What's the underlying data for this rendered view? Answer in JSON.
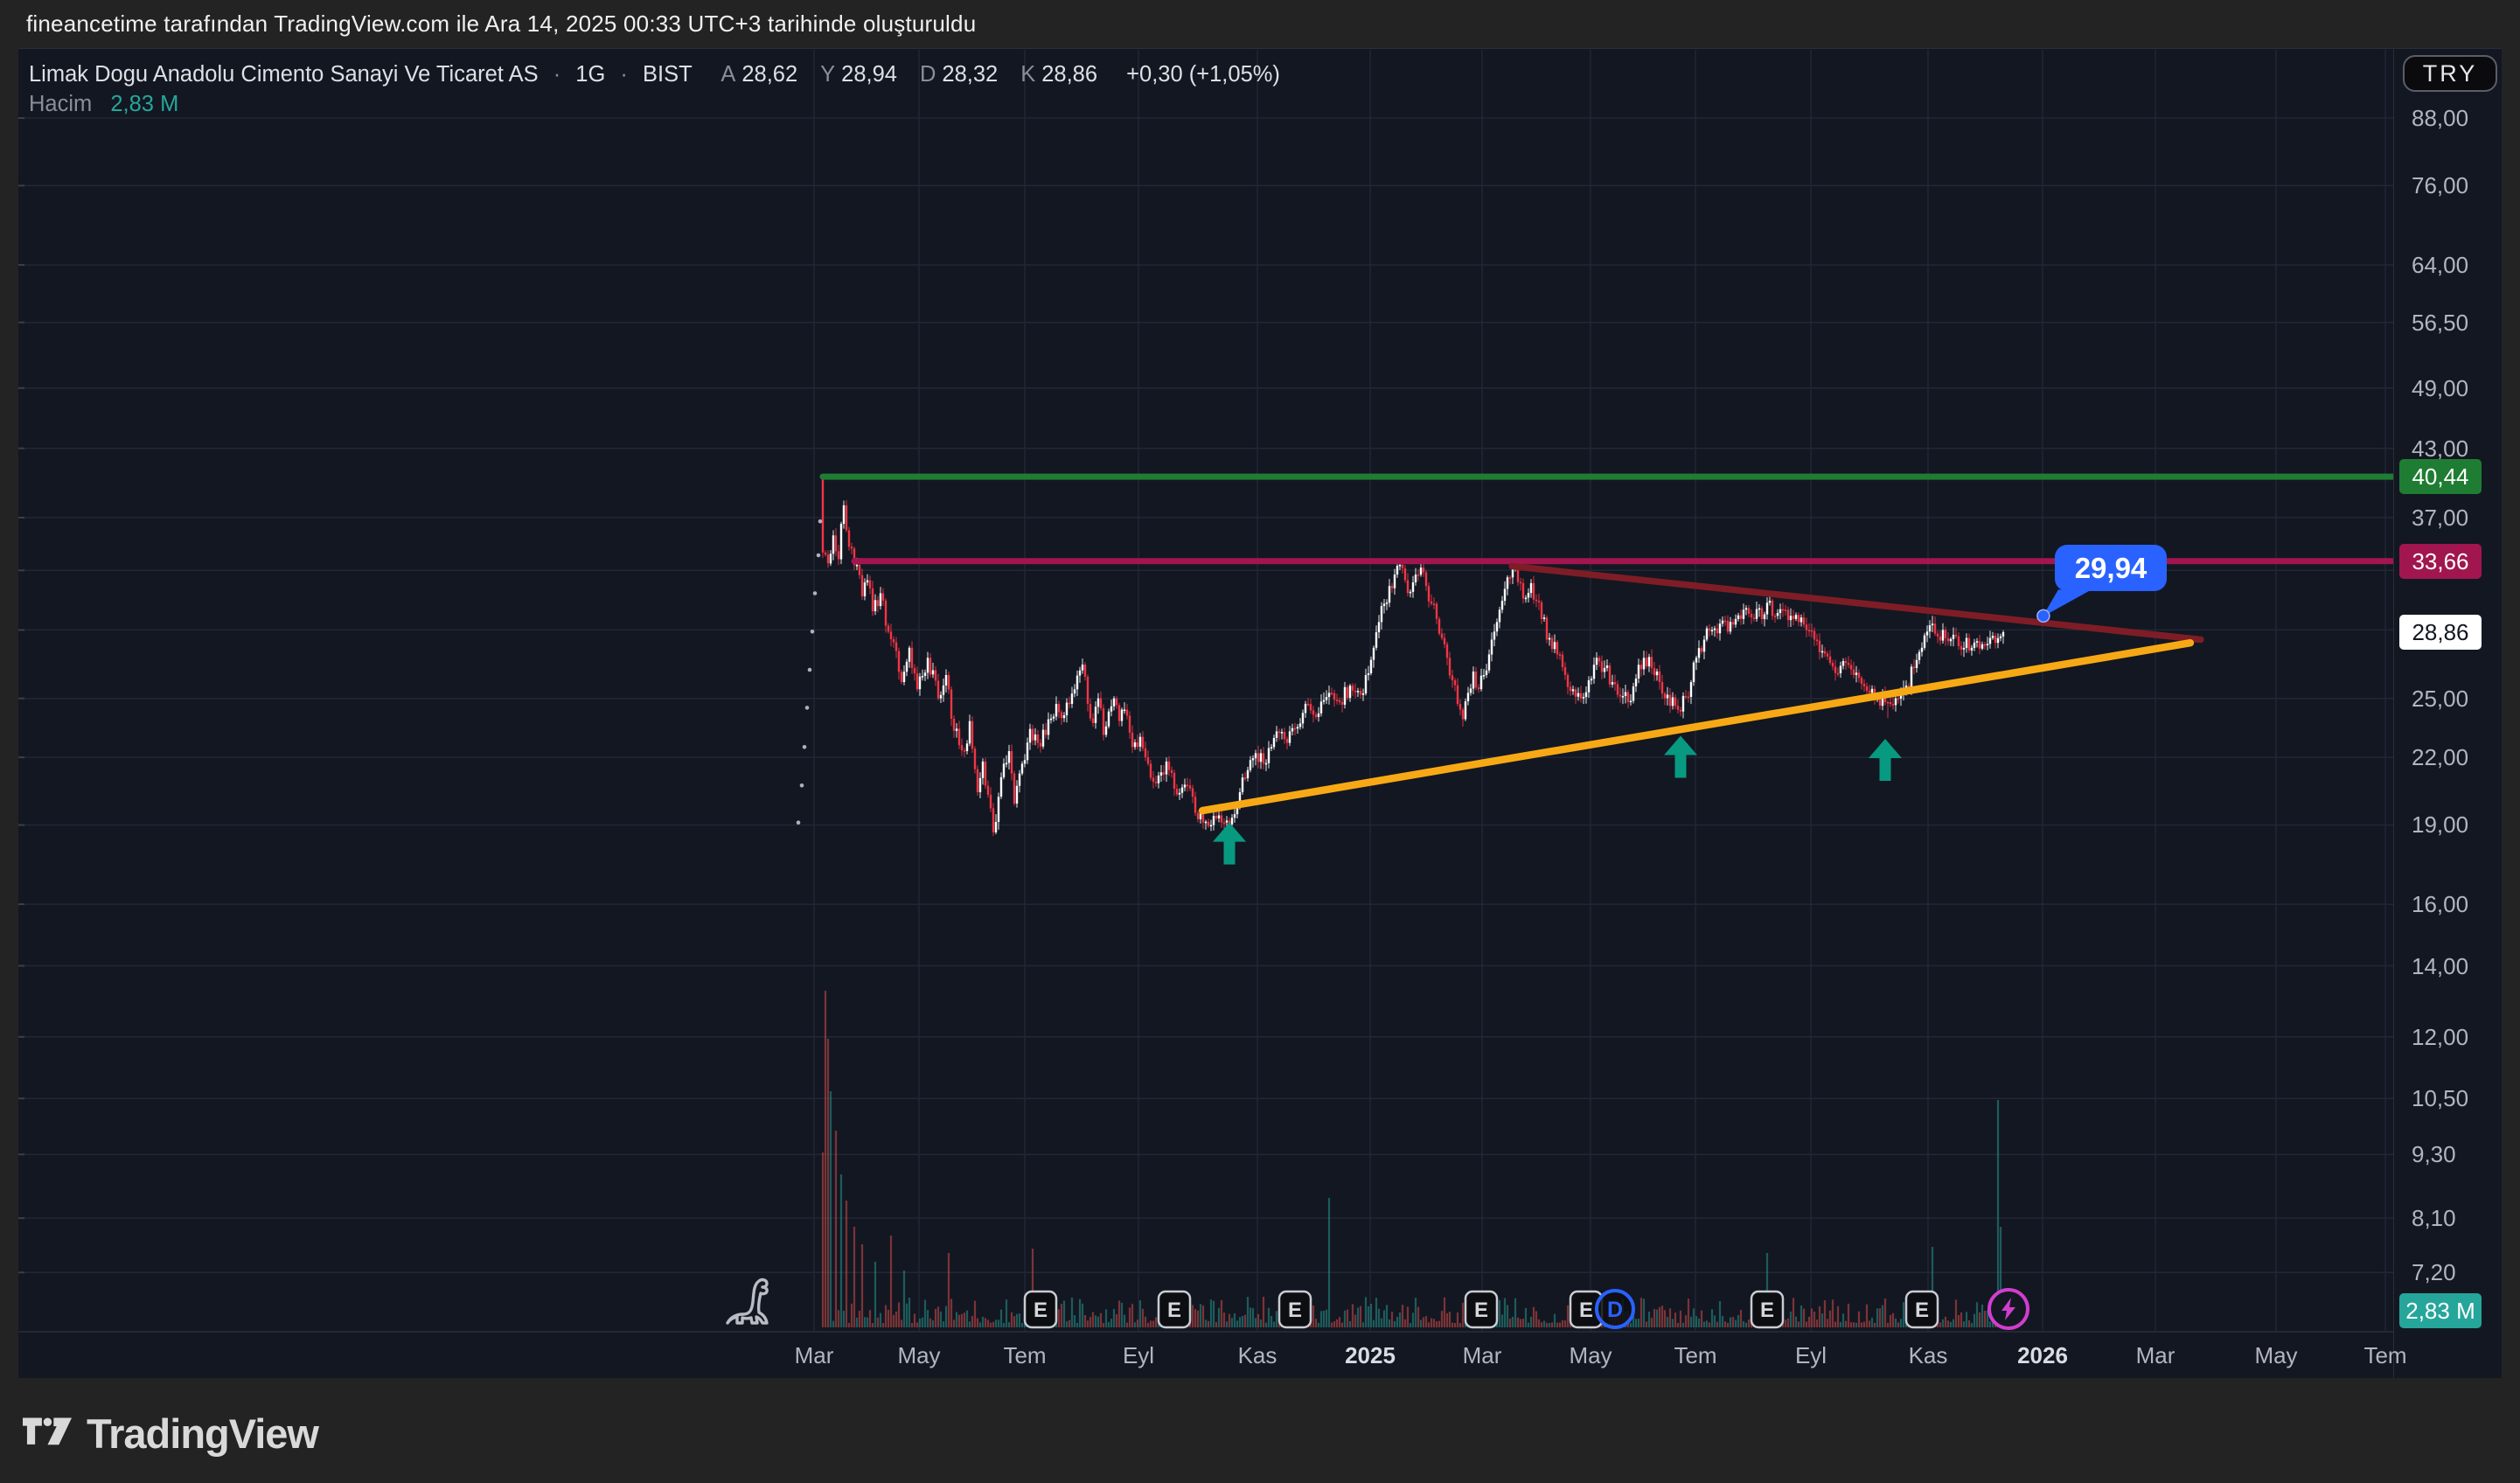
{
  "attribution": "fineancetime tarafından TradingView.com ile Ara 14, 2025 00:33 UTC+3 tarihinde oluşturuldu",
  "symbol": {
    "title": "Limak Dogu Anadolu Cimento Sanayi Ve Ticaret AS",
    "separator": "·",
    "interval": "1G",
    "exchange": "BIST",
    "ohlc": [
      {
        "label": "A",
        "value": "28,62"
      },
      {
        "label": "Y",
        "value": "28,94"
      },
      {
        "label": "D",
        "value": "28,32"
      },
      {
        "label": "K",
        "value": "28,86"
      }
    ],
    "change": "+0,30 (+1,05%)",
    "volume_label": "Hacim",
    "volume_value": "2,83 M"
  },
  "price_axis": {
    "currency": "TRY",
    "ticks": [
      {
        "label": "88,00",
        "price": 88
      },
      {
        "label": "76,00",
        "price": 76
      },
      {
        "label": "64,00",
        "price": 64
      },
      {
        "label": "56,50",
        "price": 56.5
      },
      {
        "label": "49,00",
        "price": 49
      },
      {
        "label": "43,00",
        "price": 43
      },
      {
        "label": "37,00",
        "price": 37
      },
      {
        "label": "25,00",
        "price": 25
      },
      {
        "label": "22,00",
        "price": 22
      },
      {
        "label": "19,00",
        "price": 19
      },
      {
        "label": "16,00",
        "price": 16
      },
      {
        "label": "14,00",
        "price": 14
      },
      {
        "label": "12,00",
        "price": 12
      },
      {
        "label": "10,50",
        "price": 10.5
      },
      {
        "label": "9,30",
        "price": 9.3
      },
      {
        "label": "8,10",
        "price": 8.1
      },
      {
        "label": "7,20",
        "price": 7.2
      }
    ],
    "grid_extra_prices": [
      33,
      29
    ],
    "badges": [
      {
        "label": "40,44",
        "price": 40.44,
        "bg": "#1e7d32",
        "fg": "#ffffff"
      },
      {
        "label": "33,66",
        "price": 33.66,
        "bg": "#a1164f",
        "fg": "#ffffff"
      },
      {
        "label": "28,86",
        "price": 28.86,
        "bg": "#ffffff",
        "fg": "#131722"
      }
    ],
    "volume_badge": {
      "label": "2,83 M",
      "bg": "#26a69a",
      "fg": "#ffffff"
    }
  },
  "time_axis": {
    "labels": [
      {
        "text": "Mar"
      },
      {
        "text": "May"
      },
      {
        "text": "Tem"
      },
      {
        "text": "Eyl"
      },
      {
        "text": "Kas"
      },
      {
        "text": "2025",
        "bold": true
      },
      {
        "text": "Mar"
      },
      {
        "text": "May"
      },
      {
        "text": "Tem"
      },
      {
        "text": "Eyl"
      },
      {
        "text": "Kas"
      },
      {
        "text": "2026",
        "bold": true
      },
      {
        "text": "Mar"
      },
      {
        "text": "May"
      },
      {
        "text": "Tem"
      }
    ]
  },
  "logo": {
    "text": "TradingView"
  },
  "colors": {
    "background": "#131722",
    "frame": "#232323",
    "grid": "#212736",
    "border": "#2a2e39",
    "candle_up": "#ffffff",
    "candle_down": "#f23645",
    "volume_up": "#2aa79b",
    "volume_down": "#ef5350",
    "line_green": "#1e7d32",
    "line_magenta": "#a1164f",
    "line_red": "#7e1d26",
    "line_yellow": "#f7a915",
    "arrow": "#089981",
    "tooltip": "#2962ff",
    "event_border": "#c9ccd3",
    "event_text": "#d4d7dd",
    "dividend": "#2962ff",
    "flash": "#cf3ecf",
    "dino": "#b9bcc4",
    "dots": "#aeb1bb"
  },
  "chart_data": {
    "type": "candlestick",
    "interval": "1G",
    "currency": "TRY",
    "y_scale": "log",
    "y_ticks": [
      88,
      76,
      64,
      56.5,
      49,
      43,
      37,
      25,
      22,
      19,
      16,
      14,
      12,
      10.5,
      9.3,
      8.1,
      7.2
    ],
    "x_range": {
      "start": "Mar 2024",
      "end": "Tem 2026",
      "last_candle": "Ara 2025"
    },
    "last_close": 28.86,
    "candles": {
      "count": 451,
      "first_open": 40.2,
      "anchors": [
        [
          0,
          34.3
        ],
        [
          2,
          33.5
        ],
        [
          4,
          35.6
        ],
        [
          6,
          33.8
        ],
        [
          7,
          36.5
        ],
        [
          8,
          38.0
        ],
        [
          9,
          36.0
        ],
        [
          11,
          34.6
        ],
        [
          13,
          33.4
        ],
        [
          15,
          31.2
        ],
        [
          17,
          32.3
        ],
        [
          19,
          30.2
        ],
        [
          22,
          31.4
        ],
        [
          25,
          28.9
        ],
        [
          28,
          27.7
        ],
        [
          30,
          25.9
        ],
        [
          33,
          27.9
        ],
        [
          36,
          25.5
        ],
        [
          40,
          27.3
        ],
        [
          44,
          25.0
        ],
        [
          47,
          26.3
        ],
        [
          50,
          23.3
        ],
        [
          54,
          22.3
        ],
        [
          56,
          23.8
        ],
        [
          59,
          20.4
        ],
        [
          61,
          21.8
        ],
        [
          65,
          18.7
        ],
        [
          67,
          20.2
        ],
        [
          69,
          21.7
        ],
        [
          71,
          22.3
        ],
        [
          73,
          19.9
        ],
        [
          76,
          21.7
        ],
        [
          79,
          23.4
        ],
        [
          82,
          22.7
        ],
        [
          85,
          23.1
        ],
        [
          89,
          24.7
        ],
        [
          92,
          24.1
        ],
        [
          96,
          25.5
        ],
        [
          99,
          26.9
        ],
        [
          101,
          24.7
        ],
        [
          103,
          23.7
        ],
        [
          105,
          25.0
        ],
        [
          107,
          23.1
        ],
        [
          109,
          24.3
        ],
        [
          111,
          25.0
        ],
        [
          113,
          23.8
        ],
        [
          115,
          24.4
        ],
        [
          118,
          22.5
        ],
        [
          121,
          23.0
        ],
        [
          124,
          21.7
        ],
        [
          127,
          20.8
        ],
        [
          131,
          21.8
        ],
        [
          135,
          20.3
        ],
        [
          139,
          20.7
        ],
        [
          142,
          19.5
        ],
        [
          145,
          19.1
        ],
        [
          148,
          19.0
        ],
        [
          151,
          19.4
        ],
        [
          153,
          19.1
        ],
        [
          156,
          19.3
        ],
        [
          159,
          20.4
        ],
        [
          162,
          21.4
        ],
        [
          165,
          22.2
        ],
        [
          168,
          21.7
        ],
        [
          171,
          22.5
        ],
        [
          174,
          23.2
        ],
        [
          177,
          22.7
        ],
        [
          181,
          23.5
        ],
        [
          185,
          24.7
        ],
        [
          189,
          24.2
        ],
        [
          193,
          25.3
        ],
        [
          197,
          24.8
        ],
        [
          201,
          25.7
        ],
        [
          205,
          25.2
        ],
        [
          208,
          26.4
        ],
        [
          210,
          27.9
        ],
        [
          212,
          29.5
        ],
        [
          214,
          30.7
        ],
        [
          216,
          31.9
        ],
        [
          218,
          32.7
        ],
        [
          220,
          33.4
        ],
        [
          222,
          32.3
        ],
        [
          224,
          31.5
        ],
        [
          226,
          32.7
        ],
        [
          228,
          33.2
        ],
        [
          230,
          31.9
        ],
        [
          232,
          30.7
        ],
        [
          234,
          29.7
        ],
        [
          236,
          28.5
        ],
        [
          238,
          27.3
        ],
        [
          240,
          26.0
        ],
        [
          242,
          24.7
        ],
        [
          244,
          23.9
        ],
        [
          246,
          25.3
        ],
        [
          248,
          26.5
        ],
        [
          250,
          25.5
        ],
        [
          252,
          26.3
        ],
        [
          254,
          27.5
        ],
        [
          256,
          28.9
        ],
        [
          258,
          30.3
        ],
        [
          260,
          31.7
        ],
        [
          262,
          32.5
        ],
        [
          264,
          33.2
        ],
        [
          266,
          32.1
        ],
        [
          268,
          31.1
        ],
        [
          270,
          32.1
        ],
        [
          272,
          30.9
        ],
        [
          274,
          29.7
        ],
        [
          277,
          28.5
        ],
        [
          280,
          27.5
        ],
        [
          283,
          26.3
        ],
        [
          286,
          25.5
        ],
        [
          289,
          25.0
        ],
        [
          292,
          26.0
        ],
        [
          295,
          27.3
        ],
        [
          298,
          26.7
        ],
        [
          301,
          25.9
        ],
        [
          304,
          25.1
        ],
        [
          307,
          24.8
        ],
        [
          310,
          26.1
        ],
        [
          313,
          27.3
        ],
        [
          316,
          26.7
        ],
        [
          319,
          25.9
        ],
        [
          322,
          25.2
        ],
        [
          325,
          24.6
        ],
        [
          327,
          24.3
        ],
        [
          329,
          25.1
        ],
        [
          331,
          25.9
        ],
        [
          333,
          27.3
        ],
        [
          336,
          28.4
        ],
        [
          339,
          29.0
        ],
        [
          342,
          29.4
        ],
        [
          345,
          28.9
        ],
        [
          348,
          29.7
        ],
        [
          351,
          30.3
        ],
        [
          354,
          29.8
        ],
        [
          357,
          30.4
        ],
        [
          359,
          30.0
        ],
        [
          361,
          30.9
        ],
        [
          363,
          29.9
        ],
        [
          366,
          30.3
        ],
        [
          369,
          29.9
        ],
        [
          372,
          29.5
        ],
        [
          375,
          29.0
        ],
        [
          378,
          28.4
        ],
        [
          381,
          27.7
        ],
        [
          384,
          27.0
        ],
        [
          387,
          26.4
        ],
        [
          390,
          27.0
        ],
        [
          393,
          26.3
        ],
        [
          396,
          25.8
        ],
        [
          399,
          25.3
        ],
        [
          402,
          25.0
        ],
        [
          405,
          24.8
        ],
        [
          407,
          24.7
        ],
        [
          409,
          25.0
        ],
        [
          411,
          25.3
        ],
        [
          413,
          25.7
        ],
        [
          416,
          26.7
        ],
        [
          419,
          27.9
        ],
        [
          421,
          28.9
        ],
        [
          423,
          29.4
        ],
        [
          425,
          28.6
        ],
        [
          427,
          29.0
        ],
        [
          429,
          28.3
        ],
        [
          431,
          28.7
        ],
        [
          433,
          28.0
        ],
        [
          436,
          28.5
        ],
        [
          438,
          27.9
        ],
        [
          440,
          28.3
        ],
        [
          443,
          28.1
        ],
        [
          445,
          28.5
        ],
        [
          447,
          28.2
        ],
        [
          449,
          28.6
        ],
        [
          450,
          28.86
        ]
      ],
      "wick_overrides": {
        "0": {
          "high": 40.44,
          "low": 33.9
        },
        "65": {
          "low": 18.55
        },
        "148": {
          "low": 18.75
        },
        "220": {
          "high": 33.66
        },
        "264": {
          "high": 33.5
        },
        "327": {
          "low": 24.05
        },
        "361": {
          "high": 31.4
        },
        "406": {
          "low": 23.95
        },
        "423": {
          "high": 29.9
        }
      }
    },
    "volume": {
      "current": "2,83 M",
      "spikes": {
        "0": 200,
        "1": 385,
        "2": 330,
        "3": 270,
        "5": 225,
        "7": 175,
        "9": 145,
        "12": 115,
        "15": 95,
        "20": 75,
        "26": 105,
        "31": 65,
        "48": 85,
        "80": 90,
        "193": 148,
        "360": 85,
        "423": 92,
        "448": 260,
        "449": 115
      }
    },
    "trendlines": [
      {
        "name": "horizontal-resistance-green",
        "color_key": "line_green",
        "price": 40.44,
        "from_day": 0,
        "width": 7
      },
      {
        "name": "horizontal-resistance-magenta",
        "color_key": "line_magenta",
        "price": 33.66,
        "from_day": 12,
        "width": 7
      },
      {
        "name": "descending-resistance",
        "color_key": "line_red",
        "from": [
          262.7,
          33.3
        ],
        "to": [
          525.3,
          28.4
        ],
        "width": 7.5
      },
      {
        "name": "ascending-support",
        "color_key": "line_yellow",
        "from": [
          144.7,
          19.6
        ],
        "to": [
          521.3,
          28.2
        ],
        "width": 8.5
      }
    ],
    "arrows": [
      {
        "day": 155,
        "price": 19.1
      },
      {
        "day": 327,
        "price": 23.05
      },
      {
        "day": 405,
        "price": 22.9
      }
    ],
    "events": {
      "earnings_days": [
        83,
        134,
        180,
        251,
        291,
        360,
        419
      ],
      "dividend_days": [
        302
      ],
      "flash_days": [
        452
      ]
    },
    "tooltip": {
      "label": "29,94",
      "value": 29.94,
      "day": 465.3,
      "price": 29.9
    },
    "pre_data_dots": [
      [
        -3,
        36.7
      ],
      [
        -5,
        34.1
      ],
      [
        -9,
        31.4
      ],
      [
        -12,
        28.9
      ],
      [
        -15,
        26.6
      ],
      [
        -18,
        24.5
      ],
      [
        -21,
        22.5
      ],
      [
        -24,
        20.7
      ],
      [
        -28,
        19.1
      ]
    ]
  }
}
